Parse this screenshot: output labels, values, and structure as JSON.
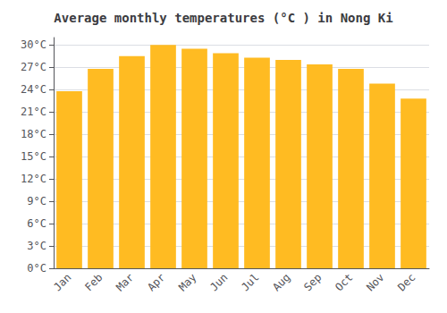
{
  "chart_data": {
    "type": "bar",
    "title": "Average monthly temperatures (°C ) in Nong Ki",
    "categories": [
      "Jan",
      "Feb",
      "Mar",
      "Apr",
      "May",
      "Jun",
      "Jul",
      "Aug",
      "Sep",
      "Oct",
      "Nov",
      "Dec"
    ],
    "values": [
      23.8,
      26.8,
      28.5,
      30.0,
      29.5,
      28.9,
      28.3,
      28.0,
      27.4,
      26.8,
      24.8,
      22.8
    ],
    "color": "#FFBB22",
    "ylim": [
      0,
      31
    ],
    "yticks": [
      {
        "value": 0,
        "label": "0°C"
      },
      {
        "value": 3,
        "label": "3°C"
      },
      {
        "value": 6,
        "label": "6°C"
      },
      {
        "value": 9,
        "label": "9°C"
      },
      {
        "value": 12,
        "label": "12°C"
      },
      {
        "value": 15,
        "label": "15°C"
      },
      {
        "value": 18,
        "label": "18°C"
      },
      {
        "value": 21,
        "label": "21°C"
      },
      {
        "value": 24,
        "label": "24°C"
      },
      {
        "value": 27,
        "label": "27°C"
      },
      {
        "value": 30,
        "label": "30°C"
      }
    ],
    "grid": true
  }
}
